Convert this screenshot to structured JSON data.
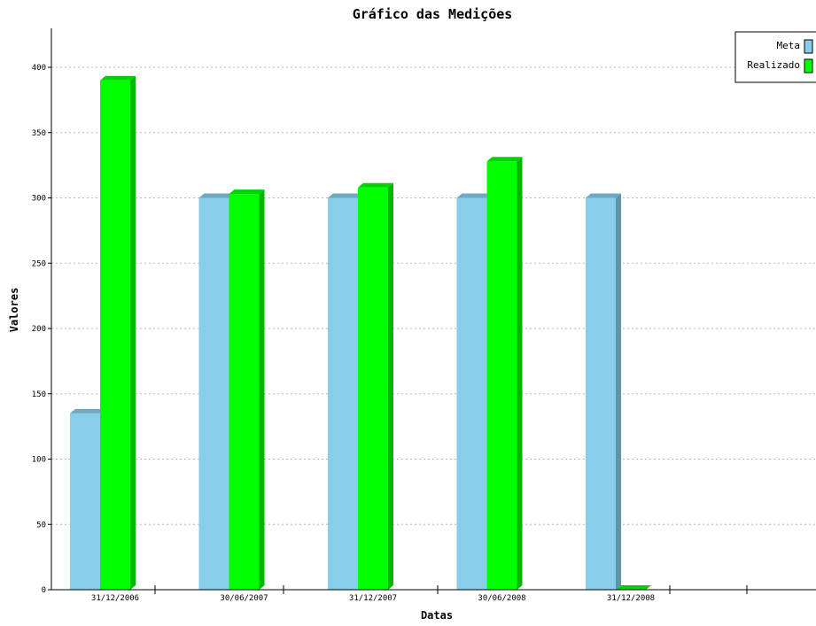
{
  "chart_data": {
    "type": "bar",
    "title": "Gráfico das Medições",
    "xlabel": "Datas",
    "ylabel": "Valores",
    "categories": [
      "31/12/2006",
      "30/06/2007",
      "31/12/2007",
      "30/06/2008",
      "31/12/2008"
    ],
    "series": [
      {
        "name": "Meta",
        "color": "#87ceeb",
        "values": [
          135,
          300,
          300,
          300,
          300
        ]
      },
      {
        "name": "Realizado",
        "color": "#00ff00",
        "values": [
          390,
          303,
          308,
          328,
          0
        ]
      }
    ],
    "ylim": [
      0,
      430
    ],
    "yticks": [
      0,
      50,
      100,
      150,
      200,
      250,
      300,
      350,
      400
    ],
    "grid": true,
    "legend_position": "top-right",
    "style": "3d"
  }
}
